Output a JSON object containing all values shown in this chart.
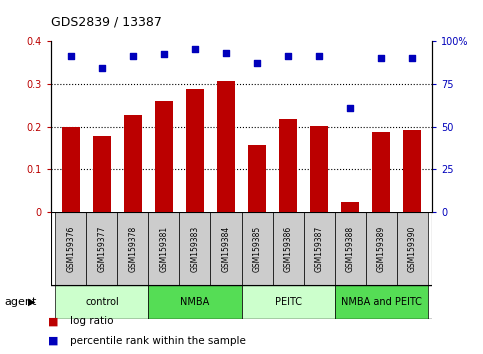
{
  "title": "GDS2839 / 13387",
  "samples": [
    "GSM159376",
    "GSM159377",
    "GSM159378",
    "GSM159381",
    "GSM159383",
    "GSM159384",
    "GSM159385",
    "GSM159386",
    "GSM159387",
    "GSM159388",
    "GSM159389",
    "GSM159390"
  ],
  "log_ratio": [
    0.2,
    0.178,
    0.228,
    0.26,
    0.288,
    0.305,
    0.158,
    0.218,
    0.202,
    0.025,
    0.188,
    0.193
  ],
  "percentile_rank": [
    91,
    84,
    91,
    92,
    95,
    93,
    87,
    91,
    91,
    61,
    90,
    90
  ],
  "groups": [
    {
      "label": "control",
      "start": 0,
      "end": 3,
      "color": "#ccffcc"
    },
    {
      "label": "NMBA",
      "start": 3,
      "end": 6,
      "color": "#55dd55"
    },
    {
      "label": "PEITC",
      "start": 6,
      "end": 9,
      "color": "#ccffcc"
    },
    {
      "label": "NMBA and PEITC",
      "start": 9,
      "end": 12,
      "color": "#55dd55"
    }
  ],
  "bar_color": "#bb0000",
  "dot_color": "#0000bb",
  "ylim_left": [
    0,
    0.4
  ],
  "ylim_right": [
    0,
    100
  ],
  "yticks_left": [
    0,
    0.1,
    0.2,
    0.3,
    0.4
  ],
  "yticks_right": [
    0,
    25,
    50,
    75,
    100
  ],
  "ytick_labels_left": [
    "0",
    "0.1",
    "0.2",
    "0.3",
    "0.4"
  ],
  "ytick_labels_right": [
    "0",
    "25",
    "50",
    "75",
    "100%"
  ],
  "grid_values": [
    0.1,
    0.2,
    0.3
  ],
  "xlabel_agent": "agent",
  "legend_bar": "log ratio",
  "legend_dot": "percentile rank within the sample",
  "bar_width": 0.6,
  "sample_box_color": "#cccccc",
  "tick_label_fontsize": 7,
  "sample_fontsize": 5.5,
  "group_fontsize": 7
}
